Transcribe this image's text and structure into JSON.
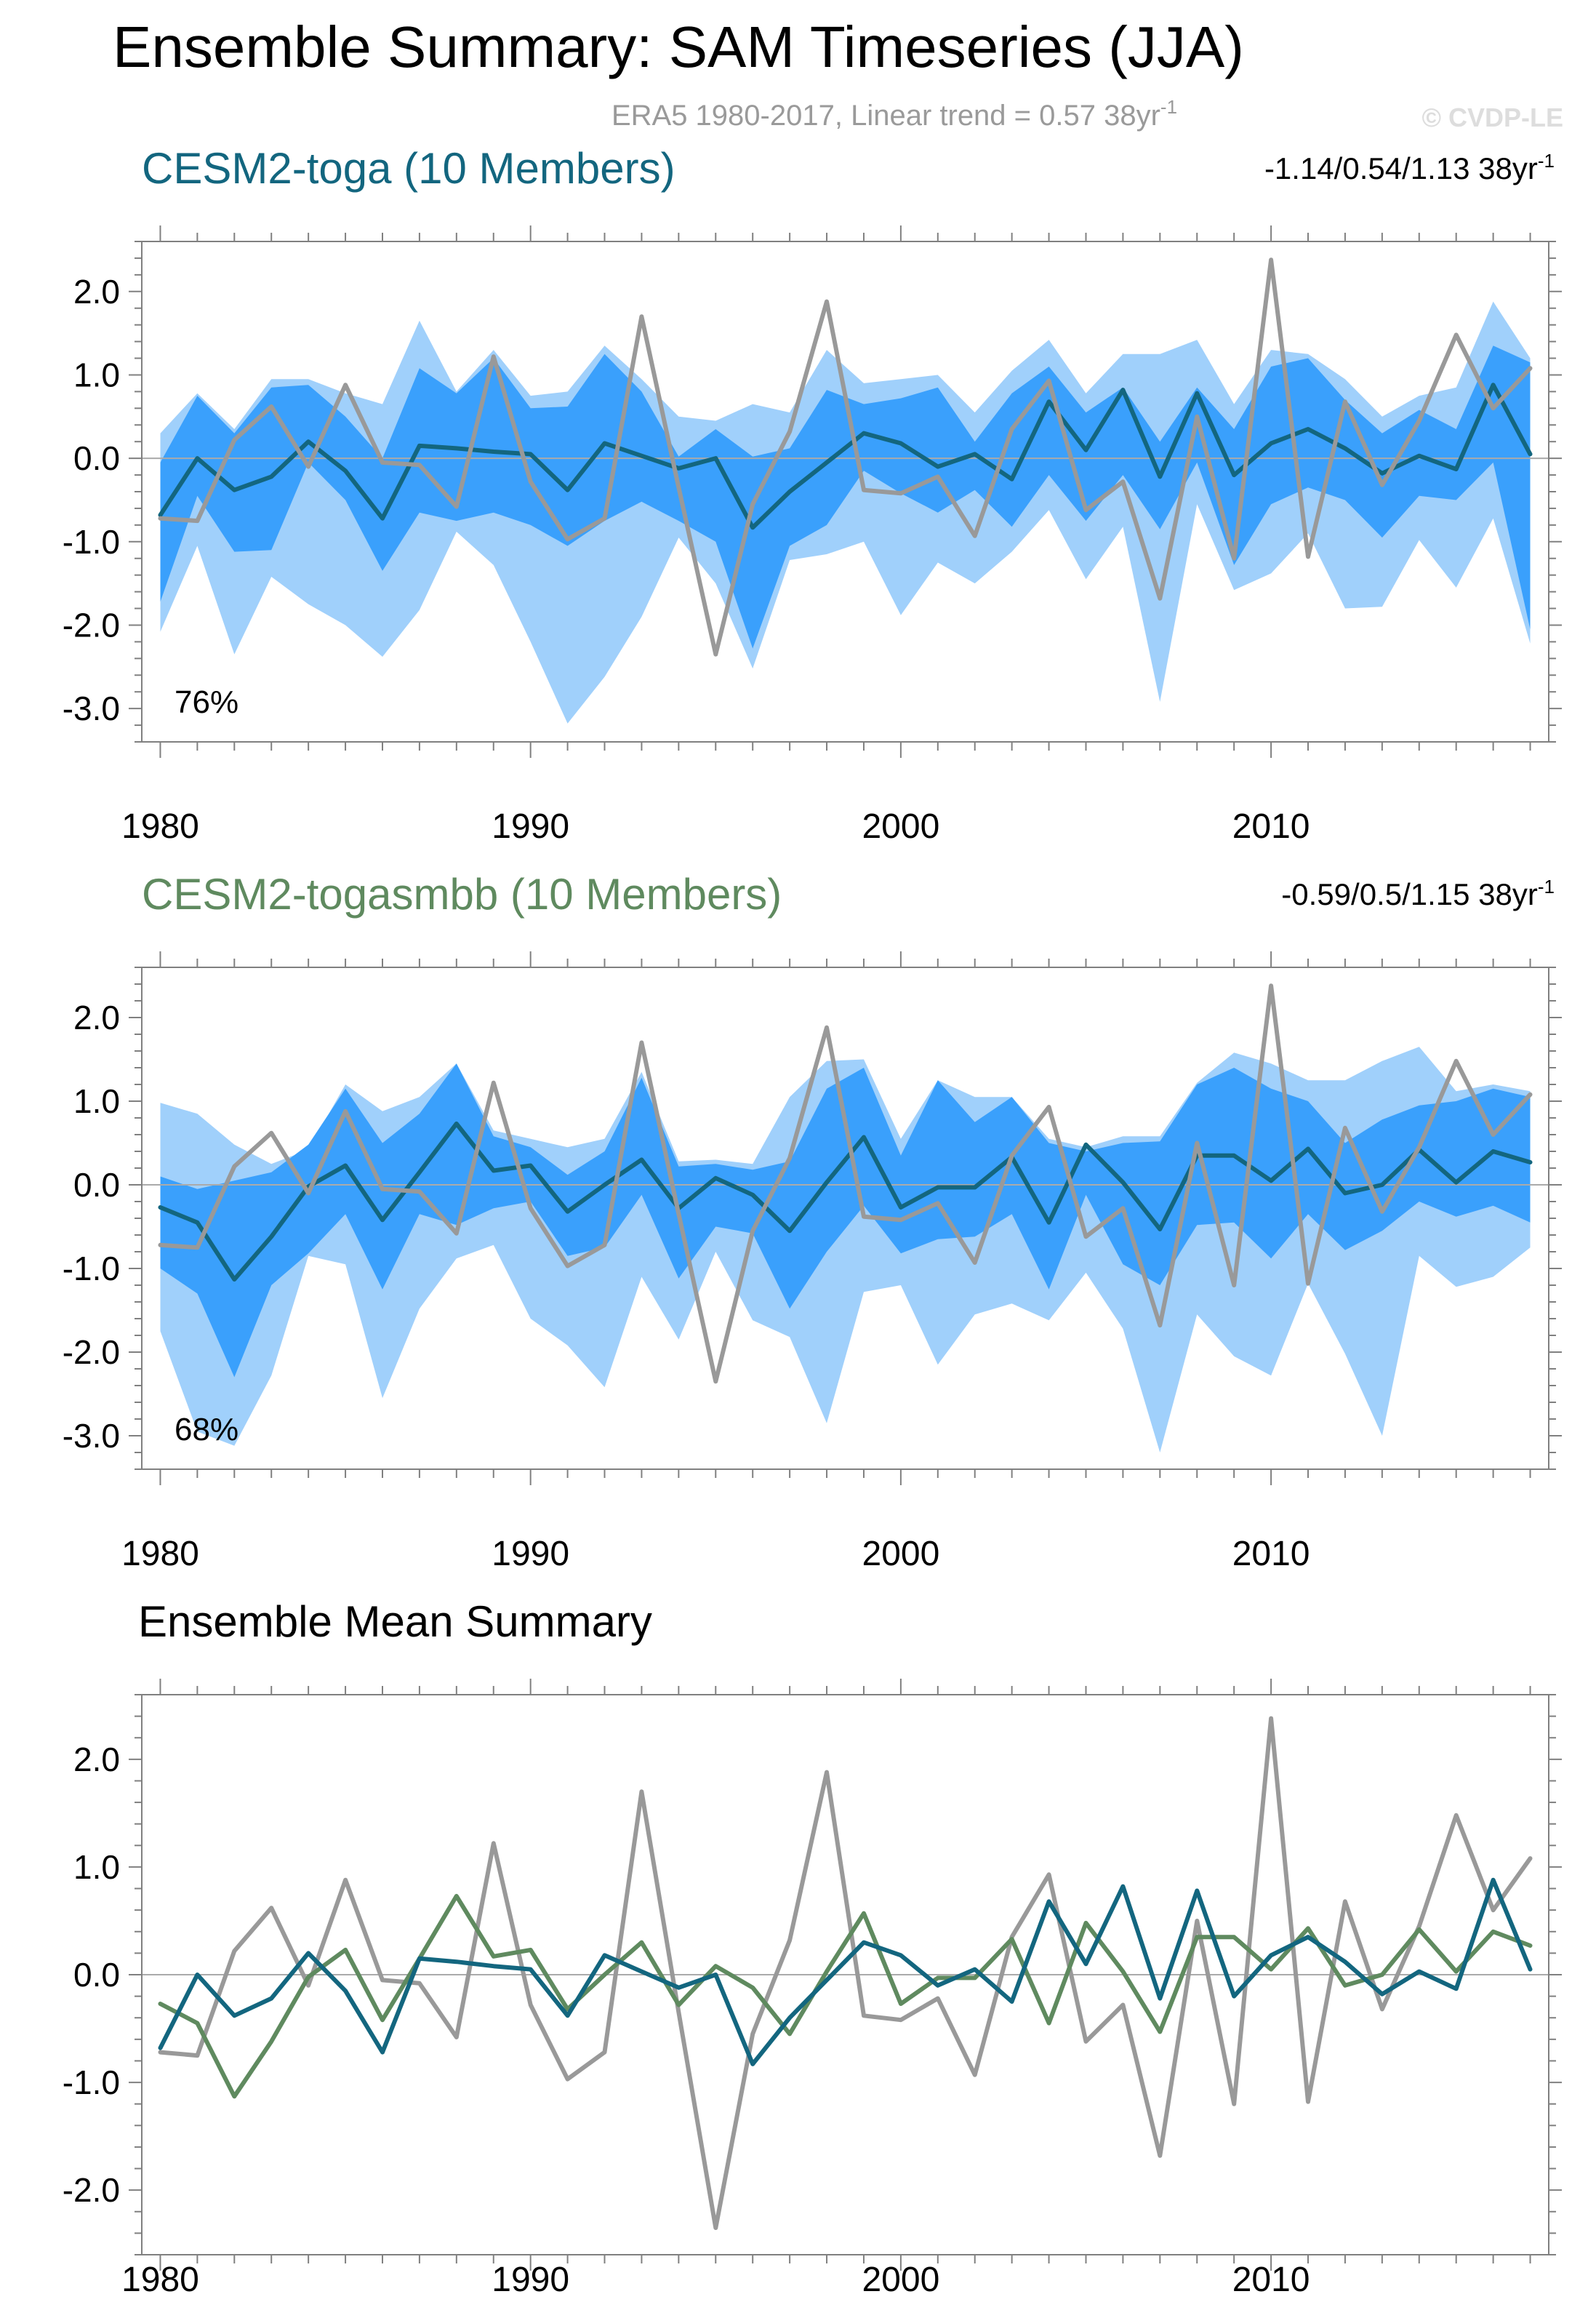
{
  "page": {
    "title": "Ensemble Summary: SAM Timeseries (JJA)",
    "subtitle": "ERA5 1980-2017, Linear trend = 0.57 38yr",
    "subtitle_sup": "-1",
    "watermark": "© CVDP-LE"
  },
  "colors": {
    "toga": "#13667f",
    "togasmbb": "#5f8a5f",
    "obs": "#999999",
    "band_outer": "#a0d0fb",
    "band_inner": "#3aa0fc",
    "axis": "#808080"
  },
  "chart_data": [
    {
      "type": "line",
      "title": "CESM2-toga (10 Members)",
      "title_color": "#13667f",
      "trend_text": "-1.14/0.54/1.13 38yr",
      "trend_sup": "-1",
      "percent_label": "76%",
      "ylim": [
        -3.4,
        2.6
      ],
      "xlim": [
        1979.5,
        2017.5
      ],
      "yticks": [
        2.0,
        1.0,
        0.0,
        -1.0,
        -2.0,
        -3.0
      ],
      "ytick_labels": [
        "2.0",
        "1.0",
        "0.0",
        "-1.0",
        "-2.0",
        "-3.0"
      ],
      "xticks": [
        1980,
        1990,
        2000,
        2010
      ],
      "xtick_labels": [
        "1980",
        "1990",
        "2000",
        "2010"
      ],
      "x": [
        1980,
        1981,
        1982,
        1983,
        1984,
        1985,
        1986,
        1987,
        1988,
        1989,
        1990,
        1991,
        1992,
        1993,
        1994,
        1995,
        1996,
        1997,
        1998,
        1999,
        2000,
        2001,
        2002,
        2003,
        2004,
        2005,
        2006,
        2007,
        2008,
        2009,
        2010,
        2011,
        2012,
        2013,
        2014,
        2015,
        2016,
        2017
      ],
      "series": [
        {
          "name": "CESM2-toga ensemble mean",
          "color": "#13667f",
          "values": [
            -0.68,
            0.0,
            -0.38,
            -0.22,
            0.2,
            -0.15,
            -0.72,
            0.15,
            0.12,
            0.08,
            0.05,
            -0.38,
            0.18,
            0.03,
            -0.12,
            0.0,
            -0.83,
            -0.4,
            -0.05,
            0.3,
            0.18,
            -0.1,
            0.05,
            -0.25,
            0.68,
            0.1,
            0.82,
            -0.22,
            0.78,
            -0.2,
            0.18,
            0.35,
            0.12,
            -0.18,
            0.03,
            -0.13,
            0.88,
            0.05
          ]
        },
        {
          "name": "ERA5",
          "color": "#999999",
          "values": [
            -0.72,
            -0.75,
            0.22,
            0.62,
            -0.1,
            0.88,
            -0.05,
            -0.08,
            -0.58,
            1.22,
            -0.28,
            -0.97,
            -0.72,
            1.7,
            -0.35,
            -2.35,
            -0.55,
            0.32,
            1.88,
            -0.38,
            -0.42,
            -0.22,
            -0.93,
            0.35,
            0.93,
            -0.62,
            -0.28,
            -1.68,
            0.5,
            -1.2,
            2.38,
            -1.18,
            0.68,
            -0.32,
            0.45,
            1.48,
            0.6,
            1.08
          ]
        }
      ],
      "bands": {
        "outer_upper": [
          0.3,
          0.78,
          0.35,
          0.95,
          0.95,
          0.78,
          0.65,
          1.65,
          0.8,
          1.3,
          0.75,
          0.8,
          1.35,
          0.95,
          0.5,
          0.45,
          0.65,
          0.55,
          1.3,
          0.9,
          0.95,
          1.0,
          0.55,
          1.05,
          1.42,
          0.78,
          1.25,
          1.25,
          1.42,
          0.65,
          1.3,
          1.25,
          0.95,
          0.5,
          0.75,
          0.85,
          1.88,
          1.2
        ],
        "inner_upper": [
          -0.05,
          0.75,
          0.3,
          0.85,
          0.88,
          0.5,
          0.0,
          1.08,
          0.78,
          1.2,
          0.6,
          0.62,
          1.25,
          0.8,
          0.02,
          0.35,
          0.02,
          0.12,
          0.82,
          0.65,
          0.72,
          0.85,
          0.2,
          0.78,
          1.1,
          0.55,
          0.85,
          0.2,
          0.85,
          0.35,
          1.1,
          1.2,
          0.7,
          0.3,
          0.58,
          0.35,
          1.35,
          1.15
        ],
        "inner_lower": [
          -1.72,
          -0.45,
          -1.12,
          -1.1,
          -0.05,
          -0.5,
          -1.35,
          -0.65,
          -0.75,
          -0.65,
          -0.8,
          -1.05,
          -0.75,
          -0.52,
          -0.75,
          -1.0,
          -2.28,
          -1.05,
          -0.8,
          -0.15,
          -0.42,
          -0.65,
          -0.38,
          -0.82,
          -0.2,
          -0.75,
          -0.2,
          -0.85,
          -0.05,
          -1.28,
          -0.55,
          -0.35,
          -0.5,
          -0.95,
          -0.45,
          -0.5,
          -0.05,
          -2.05
        ],
        "outer_lower": [
          -2.08,
          -1.05,
          -2.35,
          -1.42,
          -1.75,
          -2.0,
          -2.38,
          -1.82,
          -0.88,
          -1.28,
          -2.2,
          -3.18,
          -2.62,
          -1.9,
          -0.95,
          -1.5,
          -2.52,
          -1.22,
          -1.15,
          -1.0,
          -1.88,
          -1.25,
          -1.5,
          -1.12,
          -0.62,
          -1.45,
          -0.82,
          -2.92,
          -0.55,
          -1.58,
          -1.38,
          -0.9,
          -1.8,
          -1.78,
          -0.98,
          -1.55,
          -0.72,
          -2.22
        ]
      }
    },
    {
      "type": "line",
      "title": "CESM2-togasmbb (10 Members)",
      "title_color": "#5f8a5f",
      "trend_text": "-0.59/0.5/1.15 38yr",
      "trend_sup": "-1",
      "percent_label": "68%",
      "ylim": [
        -3.4,
        2.6
      ],
      "xlim": [
        1979.5,
        2017.5
      ],
      "yticks": [
        2.0,
        1.0,
        0.0,
        -1.0,
        -2.0,
        -3.0
      ],
      "ytick_labels": [
        "2.0",
        "1.0",
        "0.0",
        "-1.0",
        "-2.0",
        "-3.0"
      ],
      "xticks": [
        1980,
        1990,
        2000,
        2010
      ],
      "xtick_labels": [
        "1980",
        "1990",
        "2000",
        "2010"
      ],
      "x": [
        1980,
        1981,
        1982,
        1983,
        1984,
        1985,
        1986,
        1987,
        1988,
        1989,
        1990,
        1991,
        1992,
        1993,
        1994,
        1995,
        1996,
        1997,
        1998,
        1999,
        2000,
        2001,
        2002,
        2003,
        2004,
        2005,
        2006,
        2007,
        2008,
        2009,
        2010,
        2011,
        2012,
        2013,
        2014,
        2015,
        2016,
        2017
      ],
      "series": [
        {
          "name": "CESM2-togasmbb ensemble mean",
          "color": "#13667f",
          "values": [
            -0.27,
            -0.45,
            -1.13,
            -0.62,
            -0.02,
            0.23,
            -0.42,
            0.15,
            0.73,
            0.17,
            0.23,
            -0.32,
            0.0,
            0.3,
            -0.28,
            0.08,
            -0.12,
            -0.55,
            0.03,
            0.57,
            -0.27,
            -0.03,
            -0.03,
            0.33,
            -0.45,
            0.48,
            0.03,
            -0.53,
            0.35,
            0.35,
            0.05,
            0.43,
            -0.1,
            0.0,
            0.42,
            0.03,
            0.4,
            0.27
          ]
        },
        {
          "name": "ERA5",
          "color": "#999999",
          "values": [
            -0.72,
            -0.75,
            0.22,
            0.62,
            -0.1,
            0.88,
            -0.05,
            -0.08,
            -0.58,
            1.22,
            -0.28,
            -0.97,
            -0.72,
            1.7,
            -0.35,
            -2.35,
            -0.55,
            0.32,
            1.88,
            -0.38,
            -0.42,
            -0.22,
            -0.93,
            0.35,
            0.93,
            -0.62,
            -0.28,
            -1.68,
            0.5,
            -1.2,
            2.38,
            -1.18,
            0.68,
            -0.32,
            0.45,
            1.48,
            0.6,
            1.08
          ]
        }
      ],
      "bands": {
        "outer_upper": [
          0.98,
          0.85,
          0.48,
          0.25,
          0.42,
          1.2,
          0.88,
          1.05,
          1.45,
          0.65,
          0.55,
          0.45,
          0.55,
          1.35,
          0.28,
          0.3,
          0.25,
          1.05,
          1.48,
          1.5,
          0.55,
          1.25,
          1.05,
          1.05,
          0.55,
          0.45,
          0.58,
          0.58,
          1.22,
          1.58,
          1.45,
          1.25,
          1.25,
          1.48,
          1.65,
          1.12,
          1.2,
          1.12
        ],
        "inner_upper": [
          0.1,
          -0.05,
          0.05,
          0.15,
          0.48,
          1.15,
          0.5,
          0.85,
          1.45,
          0.58,
          0.45,
          0.12,
          0.4,
          1.28,
          0.22,
          0.25,
          0.18,
          0.28,
          1.15,
          1.4,
          0.35,
          1.25,
          0.75,
          1.05,
          0.5,
          0.4,
          0.5,
          0.52,
          1.2,
          1.4,
          1.15,
          1.0,
          0.5,
          0.78,
          0.95,
          1.0,
          1.15,
          1.05
        ],
        "inner_lower": [
          -1.0,
          -1.3,
          -2.3,
          -1.2,
          -0.82,
          -0.35,
          -1.25,
          -0.35,
          -0.48,
          -0.28,
          -0.2,
          -0.85,
          -0.75,
          -0.12,
          -1.12,
          -0.5,
          -0.58,
          -1.48,
          -0.8,
          -0.25,
          -0.82,
          -0.65,
          -0.62,
          -0.35,
          -1.25,
          -0.12,
          -0.95,
          -1.2,
          -0.48,
          -0.45,
          -0.88,
          -0.35,
          -0.78,
          -0.55,
          -0.2,
          -0.38,
          -0.25,
          -0.45
        ],
        "outer_lower": [
          -1.75,
          -2.95,
          -3.12,
          -2.28,
          -0.85,
          -0.95,
          -2.55,
          -1.48,
          -0.88,
          -0.72,
          -1.6,
          -1.92,
          -2.42,
          -1.1,
          -1.85,
          -0.8,
          -1.62,
          -1.82,
          -2.85,
          -1.28,
          -1.2,
          -2.15,
          -1.55,
          -1.42,
          -1.62,
          -1.05,
          -1.72,
          -3.2,
          -1.55,
          -2.05,
          -2.28,
          -1.18,
          -2.02,
          -3.0,
          -0.85,
          -1.22,
          -1.1,
          -0.75
        ]
      }
    },
    {
      "type": "line",
      "title": "Ensemble Mean Summary",
      "title_color": "#000000",
      "ylim": [
        -2.6,
        2.6
      ],
      "xlim": [
        1979.5,
        2017.5
      ],
      "yticks": [
        2.0,
        1.0,
        0.0,
        -1.0,
        -2.0
      ],
      "ytick_labels": [
        "2.0",
        "1.0",
        "0.0",
        "-1.0",
        "-2.0"
      ],
      "xticks": [
        1980,
        1990,
        2000,
        2010
      ],
      "xtick_labels": [
        "1980",
        "1990",
        "2000",
        "2010"
      ],
      "x": [
        1980,
        1981,
        1982,
        1983,
        1984,
        1985,
        1986,
        1987,
        1988,
        1989,
        1990,
        1991,
        1992,
        1993,
        1994,
        1995,
        1996,
        1997,
        1998,
        1999,
        2000,
        2001,
        2002,
        2003,
        2004,
        2005,
        2006,
        2007,
        2008,
        2009,
        2010,
        2011,
        2012,
        2013,
        2014,
        2015,
        2016,
        2017
      ],
      "series": [
        {
          "name": "ERA5",
          "color": "#999999",
          "values": [
            -0.72,
            -0.75,
            0.22,
            0.62,
            -0.1,
            0.88,
            -0.05,
            -0.08,
            -0.58,
            1.22,
            -0.28,
            -0.97,
            -0.72,
            1.7,
            -0.35,
            -2.35,
            -0.55,
            0.32,
            1.88,
            -0.38,
            -0.42,
            -0.22,
            -0.93,
            0.35,
            0.93,
            -0.62,
            -0.28,
            -1.68,
            0.5,
            -1.2,
            2.38,
            -1.18,
            0.68,
            -0.32,
            0.45,
            1.48,
            0.6,
            1.08
          ]
        },
        {
          "name": "CESM2-togasmbb",
          "color": "#5f8a5f",
          "values": [
            -0.27,
            -0.45,
            -1.13,
            -0.62,
            -0.02,
            0.23,
            -0.42,
            0.15,
            0.73,
            0.17,
            0.23,
            -0.32,
            0.0,
            0.3,
            -0.28,
            0.08,
            -0.12,
            -0.55,
            0.03,
            0.57,
            -0.27,
            -0.03,
            -0.03,
            0.33,
            -0.45,
            0.48,
            0.03,
            -0.53,
            0.35,
            0.35,
            0.05,
            0.43,
            -0.1,
            0.0,
            0.42,
            0.03,
            0.4,
            0.27
          ]
        },
        {
          "name": "CESM2-toga",
          "color": "#13667f",
          "values": [
            -0.68,
            0.0,
            -0.38,
            -0.22,
            0.2,
            -0.15,
            -0.72,
            0.15,
            0.12,
            0.08,
            0.05,
            -0.38,
            0.18,
            0.03,
            -0.12,
            0.0,
            -0.83,
            -0.4,
            -0.05,
            0.3,
            0.18,
            -0.1,
            0.05,
            -0.25,
            0.68,
            0.1,
            0.82,
            -0.22,
            0.78,
            -0.2,
            0.18,
            0.35,
            0.12,
            -0.18,
            0.03,
            -0.13,
            0.88,
            0.05
          ]
        }
      ]
    }
  ]
}
